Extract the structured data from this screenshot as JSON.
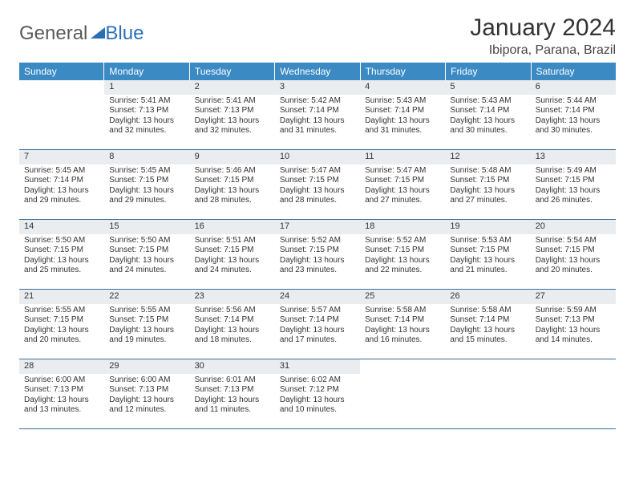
{
  "brand": {
    "part1": "General",
    "part2": "Blue"
  },
  "title": "January 2024",
  "location": "Ibipora, Parana, Brazil",
  "colors": {
    "header_bg": "#3b8ac4",
    "header_text": "#ffffff",
    "daynum_bg": "#e9edf0",
    "border": "#3b6d98",
    "text": "#333333",
    "logo_gray": "#5a5a5a",
    "logo_blue": "#2a6fb5"
  },
  "weekdays": [
    "Sunday",
    "Monday",
    "Tuesday",
    "Wednesday",
    "Thursday",
    "Friday",
    "Saturday"
  ],
  "layout": {
    "first_weekday_index": 1,
    "days_in_month": 31
  },
  "days": [
    {
      "n": 1,
      "sunrise": "5:41 AM",
      "sunset": "7:13 PM",
      "daylight": "13 hours and 32 minutes."
    },
    {
      "n": 2,
      "sunrise": "5:41 AM",
      "sunset": "7:13 PM",
      "daylight": "13 hours and 32 minutes."
    },
    {
      "n": 3,
      "sunrise": "5:42 AM",
      "sunset": "7:14 PM",
      "daylight": "13 hours and 31 minutes."
    },
    {
      "n": 4,
      "sunrise": "5:43 AM",
      "sunset": "7:14 PM",
      "daylight": "13 hours and 31 minutes."
    },
    {
      "n": 5,
      "sunrise": "5:43 AM",
      "sunset": "7:14 PM",
      "daylight": "13 hours and 30 minutes."
    },
    {
      "n": 6,
      "sunrise": "5:44 AM",
      "sunset": "7:14 PM",
      "daylight": "13 hours and 30 minutes."
    },
    {
      "n": 7,
      "sunrise": "5:45 AM",
      "sunset": "7:14 PM",
      "daylight": "13 hours and 29 minutes."
    },
    {
      "n": 8,
      "sunrise": "5:45 AM",
      "sunset": "7:15 PM",
      "daylight": "13 hours and 29 minutes."
    },
    {
      "n": 9,
      "sunrise": "5:46 AM",
      "sunset": "7:15 PM",
      "daylight": "13 hours and 28 minutes."
    },
    {
      "n": 10,
      "sunrise": "5:47 AM",
      "sunset": "7:15 PM",
      "daylight": "13 hours and 28 minutes."
    },
    {
      "n": 11,
      "sunrise": "5:47 AM",
      "sunset": "7:15 PM",
      "daylight": "13 hours and 27 minutes."
    },
    {
      "n": 12,
      "sunrise": "5:48 AM",
      "sunset": "7:15 PM",
      "daylight": "13 hours and 27 minutes."
    },
    {
      "n": 13,
      "sunrise": "5:49 AM",
      "sunset": "7:15 PM",
      "daylight": "13 hours and 26 minutes."
    },
    {
      "n": 14,
      "sunrise": "5:50 AM",
      "sunset": "7:15 PM",
      "daylight": "13 hours and 25 minutes."
    },
    {
      "n": 15,
      "sunrise": "5:50 AM",
      "sunset": "7:15 PM",
      "daylight": "13 hours and 24 minutes."
    },
    {
      "n": 16,
      "sunrise": "5:51 AM",
      "sunset": "7:15 PM",
      "daylight": "13 hours and 24 minutes."
    },
    {
      "n": 17,
      "sunrise": "5:52 AM",
      "sunset": "7:15 PM",
      "daylight": "13 hours and 23 minutes."
    },
    {
      "n": 18,
      "sunrise": "5:52 AM",
      "sunset": "7:15 PM",
      "daylight": "13 hours and 22 minutes."
    },
    {
      "n": 19,
      "sunrise": "5:53 AM",
      "sunset": "7:15 PM",
      "daylight": "13 hours and 21 minutes."
    },
    {
      "n": 20,
      "sunrise": "5:54 AM",
      "sunset": "7:15 PM",
      "daylight": "13 hours and 20 minutes."
    },
    {
      "n": 21,
      "sunrise": "5:55 AM",
      "sunset": "7:15 PM",
      "daylight": "13 hours and 20 minutes."
    },
    {
      "n": 22,
      "sunrise": "5:55 AM",
      "sunset": "7:15 PM",
      "daylight": "13 hours and 19 minutes."
    },
    {
      "n": 23,
      "sunrise": "5:56 AM",
      "sunset": "7:14 PM",
      "daylight": "13 hours and 18 minutes."
    },
    {
      "n": 24,
      "sunrise": "5:57 AM",
      "sunset": "7:14 PM",
      "daylight": "13 hours and 17 minutes."
    },
    {
      "n": 25,
      "sunrise": "5:58 AM",
      "sunset": "7:14 PM",
      "daylight": "13 hours and 16 minutes."
    },
    {
      "n": 26,
      "sunrise": "5:58 AM",
      "sunset": "7:14 PM",
      "daylight": "13 hours and 15 minutes."
    },
    {
      "n": 27,
      "sunrise": "5:59 AM",
      "sunset": "7:13 PM",
      "daylight": "13 hours and 14 minutes."
    },
    {
      "n": 28,
      "sunrise": "6:00 AM",
      "sunset": "7:13 PM",
      "daylight": "13 hours and 13 minutes."
    },
    {
      "n": 29,
      "sunrise": "6:00 AM",
      "sunset": "7:13 PM",
      "daylight": "13 hours and 12 minutes."
    },
    {
      "n": 30,
      "sunrise": "6:01 AM",
      "sunset": "7:13 PM",
      "daylight": "13 hours and 11 minutes."
    },
    {
      "n": 31,
      "sunrise": "6:02 AM",
      "sunset": "7:12 PM",
      "daylight": "13 hours and 10 minutes."
    }
  ],
  "labels": {
    "sunrise": "Sunrise:",
    "sunset": "Sunset:",
    "daylight": "Daylight:"
  }
}
